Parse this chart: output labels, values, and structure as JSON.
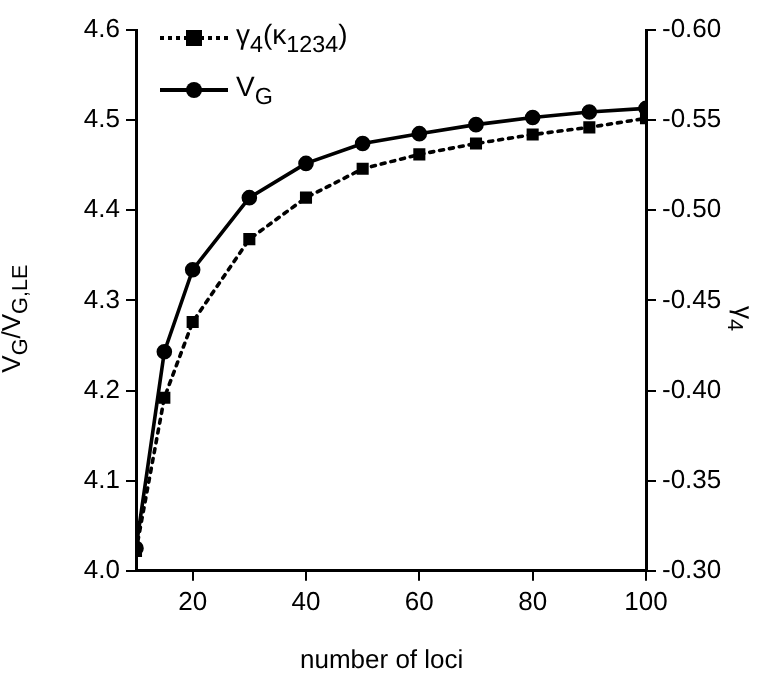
{
  "chart_data": {
    "type": "line",
    "xlabel": "number of loci",
    "ylabel": "V$_{G}$/V$_{G,LE}$",
    "y2label": "γ$_{4}$",
    "x": [
      10,
      15,
      20,
      30,
      40,
      50,
      60,
      70,
      80,
      90,
      100
    ],
    "series": [
      {
        "name": "γ$_{4}$(κ$_{1234}$)",
        "color": "#000000",
        "axis": "y2",
        "marker": "square",
        "line_style": "dotted",
        "values": [
          -0.311,
          -0.396,
          -0.438,
          -0.484,
          -0.507,
          -0.523,
          -0.531,
          -0.537,
          -0.542,
          -0.546,
          -0.551
        ]
      },
      {
        "name": "V$_{G}$",
        "color": "#000000",
        "marker": "circle",
        "line_style": "solid",
        "values": [
          4.025,
          4.243,
          4.334,
          4.414,
          4.452,
          4.474,
          4.485,
          4.495,
          4.503,
          4.509,
          4.513
        ]
      }
    ],
    "xlim": [
      10,
      100
    ],
    "xticks": [
      20,
      40,
      60,
      80,
      100
    ],
    "ylim": [
      4.0,
      4.6
    ],
    "yticks": [
      {
        "value": 4.0,
        "label": "4.0"
      },
      4.1,
      4.2,
      4.3,
      4.4,
      4.5,
      4.6
    ],
    "y2lim": [
      -0.3,
      -0.6
    ],
    "y2ticks": [
      {
        "value": -0.3,
        "label": "-0.30"
      },
      {
        "value": -0.35,
        "label": "-0.35"
      },
      {
        "value": -0.4,
        "label": "-0.40"
      },
      {
        "value": -0.45,
        "label": "-0.45"
      },
      {
        "value": -0.5,
        "label": "-0.50"
      },
      {
        "value": -0.55,
        "label": "-0.55"
      },
      {
        "value": -0.6,
        "label": "-0.60"
      }
    ],
    "grid": false,
    "legend": "top left"
  }
}
